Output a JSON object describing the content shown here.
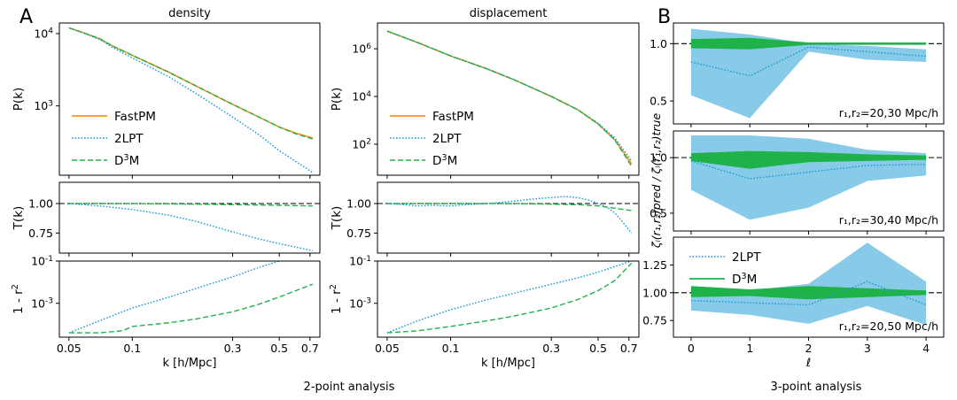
{
  "figure": {
    "panel_a_label": "A",
    "panel_b_label": "B",
    "caption_2pt": "2-point analysis",
    "caption_3pt": "3-point analysis"
  },
  "colors": {
    "fastpm": "#f7941d",
    "lpt": "#1a9ad6",
    "d3m": "#21b24b",
    "band_lpt": "#88cbe8",
    "band_d3m": "#1fb24a"
  },
  "chart_data": [
    {
      "type": "line",
      "title": "density",
      "ylabel": "P(k)",
      "xscale": "log",
      "yscale": "log",
      "xlim": [
        0.045,
        0.78
      ],
      "ylim": [
        110,
        14000
      ],
      "yticks": [
        {
          "v": 1000,
          "label": "10^3"
        },
        {
          "v": 10000,
          "label": "10^4"
        }
      ],
      "legend": [
        "FastPM",
        "2LPT",
        "D^3M"
      ],
      "series": [
        {
          "name": "FastPM",
          "style": "solid",
          "color": "#f7941d",
          "x": [
            0.05,
            0.06,
            0.07,
            0.08,
            0.1,
            0.15,
            0.2,
            0.3,
            0.4,
            0.5,
            0.6,
            0.72
          ],
          "y": [
            12000,
            10000,
            8500,
            6800,
            5000,
            2900,
            1900,
            1050,
            700,
            510,
            420,
            360
          ]
        },
        {
          "name": "2LPT",
          "style": "dotted",
          "color": "#1a9ad6",
          "x": [
            0.05,
            0.06,
            0.07,
            0.08,
            0.1,
            0.15,
            0.2,
            0.3,
            0.4,
            0.5,
            0.6,
            0.72
          ],
          "y": [
            12000,
            9900,
            8300,
            6500,
            4600,
            2500,
            1500,
            700,
            400,
            240,
            170,
            120
          ]
        },
        {
          "name": "D^3M",
          "style": "dashed",
          "color": "#21b24b",
          "x": [
            0.05,
            0.06,
            0.07,
            0.08,
            0.1,
            0.15,
            0.2,
            0.3,
            0.4,
            0.5,
            0.6,
            0.72
          ],
          "y": [
            12000,
            10000,
            8500,
            6800,
            5000,
            2900,
            1900,
            1050,
            700,
            510,
            410,
            350
          ]
        }
      ]
    },
    {
      "type": "line",
      "title": "displacement",
      "ylabel": "P(k)",
      "xscale": "log",
      "yscale": "log",
      "xlim": [
        0.045,
        0.78
      ],
      "ylim": [
        5,
        12000000
      ],
      "yticks": [
        {
          "v": 100,
          "label": "10^2"
        },
        {
          "v": 10000,
          "label": "10^4"
        },
        {
          "v": 1000000,
          "label": "10^6"
        }
      ],
      "legend": [
        "FastPM",
        "2LPT",
        "D^3M"
      ],
      "series": [
        {
          "name": "FastPM",
          "style": "solid",
          "color": "#f7941d",
          "x": [
            0.05,
            0.07,
            0.1,
            0.15,
            0.2,
            0.3,
            0.4,
            0.5,
            0.6,
            0.72
          ],
          "y": [
            5500000,
            1800000,
            500000,
            140000,
            50000,
            10000,
            2800,
            700,
            150,
            15
          ]
        },
        {
          "name": "2LPT",
          "style": "dotted",
          "color": "#1a9ad6",
          "x": [
            0.05,
            0.07,
            0.1,
            0.15,
            0.2,
            0.3,
            0.4,
            0.5,
            0.6,
            0.72
          ],
          "y": [
            5500000,
            1800000,
            500000,
            140000,
            50000,
            10000,
            2800,
            750,
            180,
            20
          ]
        },
        {
          "name": "D^3M",
          "style": "dashed",
          "color": "#21b24b",
          "x": [
            0.05,
            0.07,
            0.1,
            0.15,
            0.2,
            0.3,
            0.4,
            0.5,
            0.6,
            0.72
          ],
          "y": [
            5500000,
            1800000,
            500000,
            140000,
            50000,
            10000,
            2800,
            700,
            150,
            12
          ]
        }
      ]
    },
    {
      "type": "line",
      "ylabel": "T(k)",
      "xscale": "log",
      "yscale": "linear",
      "xlim": [
        0.045,
        0.78
      ],
      "ylim": [
        0.58,
        1.18
      ],
      "yticks": [
        {
          "v": 0.75,
          "label": "0.75"
        },
        {
          "v": 1.0,
          "label": "1.00"
        }
      ],
      "reference_line": 1.0,
      "series": [
        {
          "name": "2LPT",
          "style": "dotted",
          "color": "#1a9ad6",
          "x": [
            0.05,
            0.07,
            0.1,
            0.15,
            0.2,
            0.3,
            0.4,
            0.5,
            0.6,
            0.72
          ],
          "y": [
            1.0,
            0.98,
            0.95,
            0.9,
            0.85,
            0.76,
            0.7,
            0.66,
            0.63,
            0.6
          ]
        },
        {
          "name": "D^3M",
          "style": "dashed",
          "color": "#21b24b",
          "x": [
            0.05,
            0.1,
            0.2,
            0.3,
            0.5,
            0.72
          ],
          "y": [
            1.0,
            1.0,
            0.995,
            0.99,
            0.985,
            0.98
          ]
        }
      ]
    },
    {
      "type": "line",
      "ylabel": "T(k)",
      "xscale": "log",
      "yscale": "linear",
      "xlim": [
        0.045,
        0.78
      ],
      "ylim": [
        0.58,
        1.18
      ],
      "yticks": [
        {
          "v": 0.75,
          "label": "0.75"
        },
        {
          "v": 1.0,
          "label": "1.00"
        }
      ],
      "reference_line": 1.0,
      "series": [
        {
          "name": "2LPT",
          "style": "dotted",
          "color": "#1a9ad6",
          "x": [
            0.05,
            0.06,
            0.07,
            0.08,
            0.1,
            0.12,
            0.15,
            0.2,
            0.25,
            0.3,
            0.35,
            0.4,
            0.45,
            0.5,
            0.55,
            0.6,
            0.65,
            0.72
          ],
          "y": [
            1.0,
            0.99,
            0.98,
            0.985,
            0.98,
            0.99,
            1.0,
            1.02,
            1.04,
            1.05,
            1.06,
            1.05,
            1.03,
            1.0,
            0.97,
            0.92,
            0.85,
            0.75
          ]
        },
        {
          "name": "D^3M",
          "style": "dashed",
          "color": "#21b24b",
          "x": [
            0.05,
            0.1,
            0.2,
            0.3,
            0.4,
            0.5,
            0.6,
            0.72
          ],
          "y": [
            1.0,
            1.0,
            1.0,
            0.995,
            0.99,
            0.98,
            0.96,
            0.94
          ]
        }
      ]
    },
    {
      "type": "line",
      "ylabel": "1 - r^2",
      "xlabel": "k [h/Mpc]",
      "xscale": "log",
      "yscale": "log",
      "xlim": [
        0.045,
        0.78
      ],
      "ylim": [
        2.5e-05,
        0.1
      ],
      "xticks": [
        0.05,
        0.1,
        0.3,
        0.5,
        0.7
      ],
      "yticks": [
        {
          "v": 0.001,
          "label": "10^-3"
        },
        {
          "v": 0.1,
          "label": "10^-1"
        }
      ],
      "series": [
        {
          "name": "2LPT",
          "style": "dotted",
          "color": "#1a9ad6",
          "x": [
            0.05,
            0.07,
            0.1,
            0.15,
            0.2,
            0.3,
            0.4,
            0.5
          ],
          "y": [
            4e-05,
            0.00015,
            0.0006,
            0.002,
            0.005,
            0.018,
            0.05,
            0.1
          ]
        },
        {
          "name": "D^3M",
          "style": "dashed",
          "color": "#21b24b",
          "x": [
            0.05,
            0.07,
            0.09,
            0.1,
            0.15,
            0.2,
            0.3,
            0.4,
            0.5,
            0.6,
            0.72
          ],
          "y": [
            4e-05,
            4e-05,
            5e-05,
            8e-05,
            0.00012,
            0.00018,
            0.0004,
            0.0009,
            0.002,
            0.004,
            0.008
          ]
        }
      ]
    },
    {
      "type": "line",
      "ylabel": "1 - r^2",
      "xlabel": "k [h/Mpc]",
      "xscale": "log",
      "yscale": "log",
      "xlim": [
        0.045,
        0.78
      ],
      "ylim": [
        2.5e-05,
        0.1
      ],
      "xticks": [
        0.05,
        0.1,
        0.3,
        0.5,
        0.7
      ],
      "yticks": [
        {
          "v": 0.001,
          "label": "10^-3"
        },
        {
          "v": 0.1,
          "label": "10^-1"
        }
      ],
      "series": [
        {
          "name": "2LPT",
          "style": "dotted",
          "color": "#1a9ad6",
          "x": [
            0.05,
            0.07,
            0.1,
            0.15,
            0.2,
            0.3,
            0.4,
            0.5,
            0.6,
            0.72
          ],
          "y": [
            4e-05,
            0.00015,
            0.0005,
            0.0015,
            0.003,
            0.008,
            0.016,
            0.03,
            0.055,
            0.1
          ]
        },
        {
          "name": "D^3M",
          "style": "dashed",
          "color": "#21b24b",
          "x": [
            0.05,
            0.07,
            0.1,
            0.15,
            0.2,
            0.3,
            0.4,
            0.5,
            0.6,
            0.72
          ],
          "y": [
            4e-05,
            5e-05,
            8e-05,
            0.00015,
            0.00025,
            0.0006,
            0.0015,
            0.004,
            0.012,
            0.08
          ]
        }
      ]
    },
    {
      "type": "area",
      "annotation": "r_1,r_2=20,30 Mpc/h",
      "xlim": [
        -0.3,
        4.3
      ],
      "ylim": [
        0.3,
        1.18
      ],
      "yticks": [
        {
          "v": 0.5,
          "label": "0.5"
        },
        {
          "v": 1.0,
          "label": "1.0"
        }
      ],
      "reference_line": 1.0,
      "x": [
        0,
        1,
        2,
        3,
        4
      ],
      "series": [
        {
          "name": "2LPT",
          "style": "dotted",
          "color": "#1a9ad6",
          "mean": [
            0.84,
            0.72,
            0.97,
            0.93,
            0.89
          ],
          "lower": [
            0.55,
            0.35,
            0.93,
            0.86,
            0.84
          ],
          "upper": [
            1.13,
            1.08,
            1.0,
            0.98,
            0.95
          ]
        },
        {
          "name": "D^3M",
          "style": "solid",
          "color": "#21b24b",
          "mean": [
            1.0,
            1.0,
            1.0,
            1.0,
            1.0
          ],
          "lower": [
            0.96,
            0.95,
            0.99,
            0.99,
            0.99
          ],
          "upper": [
            1.04,
            1.05,
            1.01,
            1.01,
            1.01
          ]
        }
      ]
    },
    {
      "type": "area",
      "annotation": "r_1,r_2=30,40 Mpc/h",
      "xlim": [
        -0.3,
        4.3
      ],
      "ylim": [
        0.34,
        1.24
      ],
      "yticks": [
        {
          "v": 0.5,
          "label": "0.5"
        },
        {
          "v": 1.0,
          "label": "1.0"
        }
      ],
      "reference_line": 1.0,
      "x": [
        0,
        1,
        2,
        3,
        4
      ],
      "series": [
        {
          "name": "2LPT",
          "style": "dotted",
          "color": "#1a9ad6",
          "mean": [
            0.97,
            0.81,
            0.87,
            0.93,
            0.94
          ],
          "lower": [
            0.71,
            0.44,
            0.55,
            0.79,
            0.84
          ],
          "upper": [
            1.2,
            1.2,
            1.17,
            1.07,
            1.04
          ]
        },
        {
          "name": "D^3M",
          "style": "solid",
          "color": "#21b24b",
          "mean": [
            1.0,
            1.0,
            1.0,
            1.0,
            1.0
          ],
          "lower": [
            0.97,
            0.9,
            0.96,
            0.97,
            0.98
          ],
          "upper": [
            1.04,
            1.06,
            1.05,
            1.03,
            1.02
          ]
        }
      ]
    },
    {
      "type": "area",
      "annotation": "r_1,r_2=20,50 Mpc/h",
      "xlim": [
        -0.3,
        4.3
      ],
      "ylim": [
        0.6,
        1.5
      ],
      "xlabel": "ℓ",
      "xticks": [
        0,
        1,
        2,
        3,
        4
      ],
      "yticks": [
        {
          "v": 0.75,
          "label": "0.75"
        },
        {
          "v": 1.0,
          "label": "1.00"
        },
        {
          "v": 1.25,
          "label": "1.25"
        }
      ],
      "reference_line": 1.0,
      "legend": [
        "2LPT",
        "D^3M"
      ],
      "x": [
        0,
        1,
        2,
        3,
        4
      ],
      "series": [
        {
          "name": "2LPT",
          "style": "dotted",
          "color": "#1a9ad6",
          "mean": [
            0.93,
            0.91,
            0.89,
            1.1,
            0.89
          ],
          "lower": [
            0.84,
            0.8,
            0.72,
            0.88,
            0.71
          ],
          "upper": [
            1.03,
            1.02,
            1.08,
            1.45,
            1.1
          ]
        },
        {
          "name": "D^3M",
          "style": "solid",
          "color": "#21b24b",
          "mean": [
            1.0,
            1.0,
            1.0,
            1.0,
            1.0
          ],
          "lower": [
            0.96,
            0.97,
            0.94,
            0.96,
            0.98
          ],
          "upper": [
            1.06,
            1.03,
            1.06,
            1.04,
            1.02
          ]
        }
      ]
    }
  ],
  "panel_b_ylabel": "ζ_ℓ(r_1,r_2)_pred / ζ_ℓ(r_1,r_2)_true"
}
